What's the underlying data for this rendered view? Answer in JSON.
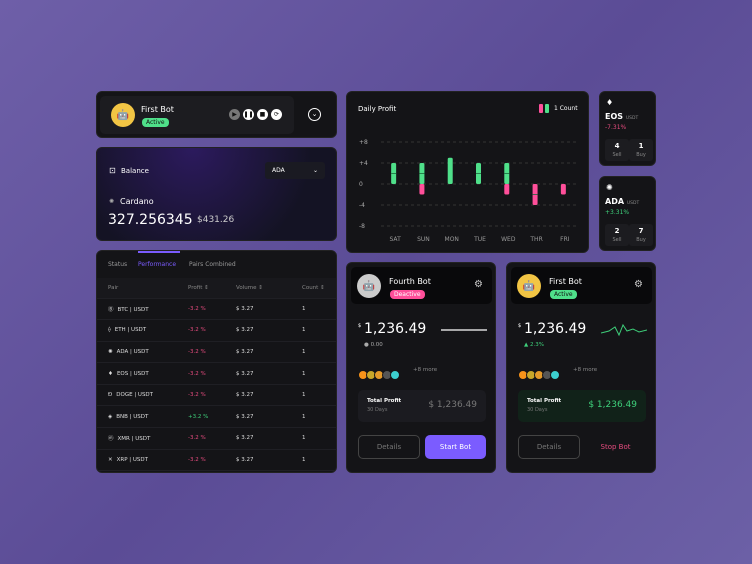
{
  "bot_header": {
    "name": "First Bot",
    "status": "Active",
    "controls": [
      "play",
      "pause",
      "stop",
      "refresh"
    ]
  },
  "balance": {
    "title": "Balance",
    "currency_select": "ADA",
    "coin_name": "Cardano",
    "amount": "327.256345",
    "usd_value": "$431.26"
  },
  "table": {
    "tabs": [
      "Status",
      "Performance",
      "Pairs Combined"
    ],
    "active_tab": "Performance",
    "columns": [
      "Pair",
      "Profit",
      "Volume",
      "Count"
    ],
    "rows": [
      {
        "pair": "BTC | USDT",
        "profit": "-3.2 %",
        "volume": "$ 3.27",
        "count": "1"
      },
      {
        "pair": "ETH | USDT",
        "profit": "-3.2 %",
        "volume": "$ 3.27",
        "count": "1"
      },
      {
        "pair": "ADA | USDT",
        "profit": "-3.2 %",
        "volume": "$ 3.27",
        "count": "1"
      },
      {
        "pair": "EOS | USDT",
        "profit": "-3.2 %",
        "volume": "$ 3.27",
        "count": "1"
      },
      {
        "pair": "DOGE | USDT",
        "profit": "-3.2 %",
        "volume": "$ 3.27",
        "count": "1"
      },
      {
        "pair": "BNB | USDT",
        "profit": "+3.2 %",
        "volume": "$ 3.27",
        "count": "1"
      },
      {
        "pair": "XMR | USDT",
        "profit": "-3.2 %",
        "volume": "$ 3.27",
        "count": "1"
      },
      {
        "pair": "XRP | USDT",
        "profit": "-3.2 %",
        "volume": "$ 3.27",
        "count": "1"
      }
    ]
  },
  "chart_data": {
    "type": "bar",
    "title": "Daily Profit",
    "legend": "1 Count",
    "legend_placement": "top-right",
    "categories": [
      "SAT",
      "SUN",
      "MON",
      "TUE",
      "WED",
      "THR",
      "FRI"
    ],
    "yticks": [
      "+8",
      "+4",
      "0",
      "-4",
      "-8"
    ],
    "ylim": [
      -8,
      8
    ],
    "grid": true,
    "series": [
      {
        "color": "#4fe08a",
        "values": [
          4,
          4,
          5,
          4,
          4,
          0,
          0
        ],
        "counts": [
          2,
          2,
          1,
          2,
          2,
          0,
          0
        ]
      },
      {
        "color": "#ff4f9a",
        "values": [
          0,
          -2,
          0,
          0,
          -2,
          -4,
          -2
        ],
        "counts": [
          0,
          1,
          0,
          0,
          1,
          2,
          1
        ]
      }
    ]
  },
  "eos": {
    "name": "EOS",
    "quote": "USDT",
    "change": "-7.31%",
    "sell": "4",
    "buy": "1",
    "sell_label": "Sell",
    "buy_label": "Buy"
  },
  "ada": {
    "name": "ADA",
    "quote": "USDT",
    "change": "+3.31%",
    "sell": "2",
    "buy": "7",
    "sell_label": "Sell",
    "buy_label": "Buy"
  },
  "bot1": {
    "name": "Fourth Bot",
    "status": "Deactive",
    "currency": "$",
    "value": "1,236.49",
    "change": "0.00",
    "more": "+8 more",
    "profit_label": "Total Profit",
    "period": "30 Days",
    "profit": "$ 1,236.49",
    "details": "Details",
    "action": "Start Bot"
  },
  "bot2": {
    "name": "First Bot",
    "status": "Active",
    "currency": "$",
    "value": "1,236.49",
    "change": "2.3%",
    "more": "+8 more",
    "profit_label": "Total Profit",
    "period": "30 Days",
    "profit": "$ 1,236.49",
    "details": "Details",
    "action": "Stop Bot"
  },
  "colors": {
    "accent": "#7b5cff",
    "green": "#3ecf7a",
    "pink": "#e54b7e"
  }
}
